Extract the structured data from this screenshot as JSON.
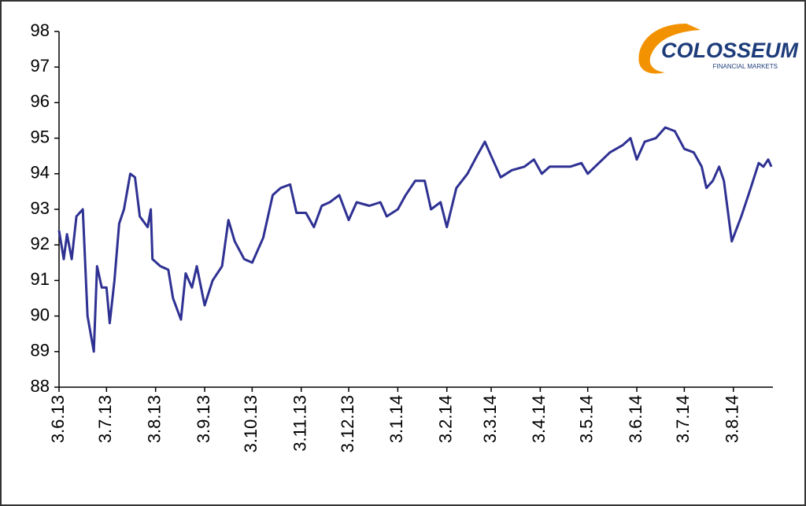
{
  "chart_data": {
    "type": "line",
    "x": [
      "2013-06-03",
      "2013-06-06",
      "2013-06-08",
      "2013-06-11",
      "2013-06-14",
      "2013-06-18",
      "2013-06-21",
      "2013-06-25",
      "2013-06-27",
      "2013-06-30",
      "2013-07-03",
      "2013-07-05",
      "2013-07-08",
      "2013-07-11",
      "2013-07-14",
      "2013-07-18",
      "2013-07-21",
      "2013-07-24",
      "2013-07-29",
      "2013-07-31",
      "2013-08-01",
      "2013-08-06",
      "2013-08-11",
      "2013-08-14",
      "2013-08-19",
      "2013-08-22",
      "2013-08-26",
      "2013-08-29",
      "2013-09-03",
      "2013-09-08",
      "2013-09-14",
      "2013-09-18",
      "2013-09-22",
      "2013-09-28",
      "2013-10-03",
      "2013-10-10",
      "2013-10-16",
      "2013-10-21",
      "2013-10-27",
      "2013-10-31",
      "2013-11-06",
      "2013-11-11",
      "2013-11-16",
      "2013-11-21",
      "2013-11-27",
      "2013-12-03",
      "2013-12-08",
      "2013-12-16",
      "2013-12-23",
      "2013-12-27",
      "2014-01-03",
      "2014-01-08",
      "2014-01-14",
      "2014-01-20",
      "2014-01-24",
      "2014-01-30",
      "2014-02-03",
      "2014-02-09",
      "2014-02-16",
      "2014-02-22",
      "2014-02-27",
      "2014-03-03",
      "2014-03-09",
      "2014-03-16",
      "2014-03-24",
      "2014-03-30",
      "2014-04-04",
      "2014-04-09",
      "2014-04-15",
      "2014-04-22",
      "2014-04-29",
      "2014-05-03",
      "2014-05-10",
      "2014-05-17",
      "2014-05-25",
      "2014-05-30",
      "2014-06-03",
      "2014-06-08",
      "2014-06-15",
      "2014-06-21",
      "2014-06-27",
      "2014-07-03",
      "2014-07-09",
      "2014-07-14",
      "2014-07-17",
      "2014-07-21",
      "2014-07-25",
      "2014-07-28",
      "2014-08-02",
      "2014-08-08",
      "2014-08-14",
      "2014-08-19",
      "2014-08-22",
      "2014-08-25",
      "2014-08-27"
    ],
    "series": [
      {
        "color": "#2e3192",
        "values": [
          92.4,
          91.6,
          92.3,
          91.6,
          92.8,
          93.0,
          90.0,
          89.0,
          91.4,
          90.8,
          90.8,
          89.8,
          91.0,
          92.6,
          93.0,
          94.0,
          93.9,
          92.8,
          92.5,
          93.0,
          91.6,
          91.4,
          91.3,
          90.5,
          89.9,
          91.2,
          90.8,
          91.4,
          90.3,
          91.0,
          91.4,
          92.7,
          92.1,
          91.6,
          91.5,
          92.2,
          93.4,
          93.6,
          93.7,
          92.9,
          92.9,
          92.5,
          93.1,
          93.2,
          93.4,
          92.7,
          93.2,
          93.1,
          93.2,
          92.8,
          93.0,
          93.4,
          93.8,
          93.8,
          93.0,
          93.2,
          92.5,
          93.6,
          94.0,
          94.5,
          94.9,
          94.5,
          93.9,
          94.1,
          94.2,
          94.4,
          94.0,
          94.2,
          94.2,
          94.2,
          94.3,
          94.0,
          94.3,
          94.6,
          94.8,
          95.0,
          94.4,
          94.9,
          95.0,
          95.3,
          95.2,
          94.7,
          94.6,
          94.2,
          93.6,
          93.8,
          94.2,
          93.8,
          92.1,
          92.8,
          93.6,
          94.3,
          94.2,
          94.4,
          94.2
        ]
      }
    ],
    "xlim": [
      "2013-06-03",
      "2014-08-28"
    ],
    "xticks": [
      {
        "value": "2013-06-03",
        "label": "3.6.13"
      },
      {
        "value": "2013-07-03",
        "label": "3.7.13"
      },
      {
        "value": "2013-08-03",
        "label": "3.8.13"
      },
      {
        "value": "2013-09-03",
        "label": "3.9.13"
      },
      {
        "value": "2013-10-03",
        "label": "3.10.13"
      },
      {
        "value": "2013-11-03",
        "label": "3.11.13"
      },
      {
        "value": "2013-12-03",
        "label": "3.12.13"
      },
      {
        "value": "2014-01-03",
        "label": "3.1.14"
      },
      {
        "value": "2014-02-03",
        "label": "3.2.14"
      },
      {
        "value": "2014-03-03",
        "label": "3.3.14"
      },
      {
        "value": "2014-04-03",
        "label": "3.4.14"
      },
      {
        "value": "2014-05-03",
        "label": "3.5.14"
      },
      {
        "value": "2014-06-03",
        "label": "3.6.14"
      },
      {
        "value": "2014-07-03",
        "label": "3.7.14"
      },
      {
        "value": "2014-08-03",
        "label": "3.8.14"
      }
    ],
    "ylim": [
      88,
      98
    ],
    "yticks": [
      88,
      89,
      90,
      91,
      92,
      93,
      94,
      95,
      96,
      97,
      98
    ]
  },
  "logo": {
    "name": "COLOSSEUM",
    "tagline": "FINANCIAL MARKETS"
  }
}
